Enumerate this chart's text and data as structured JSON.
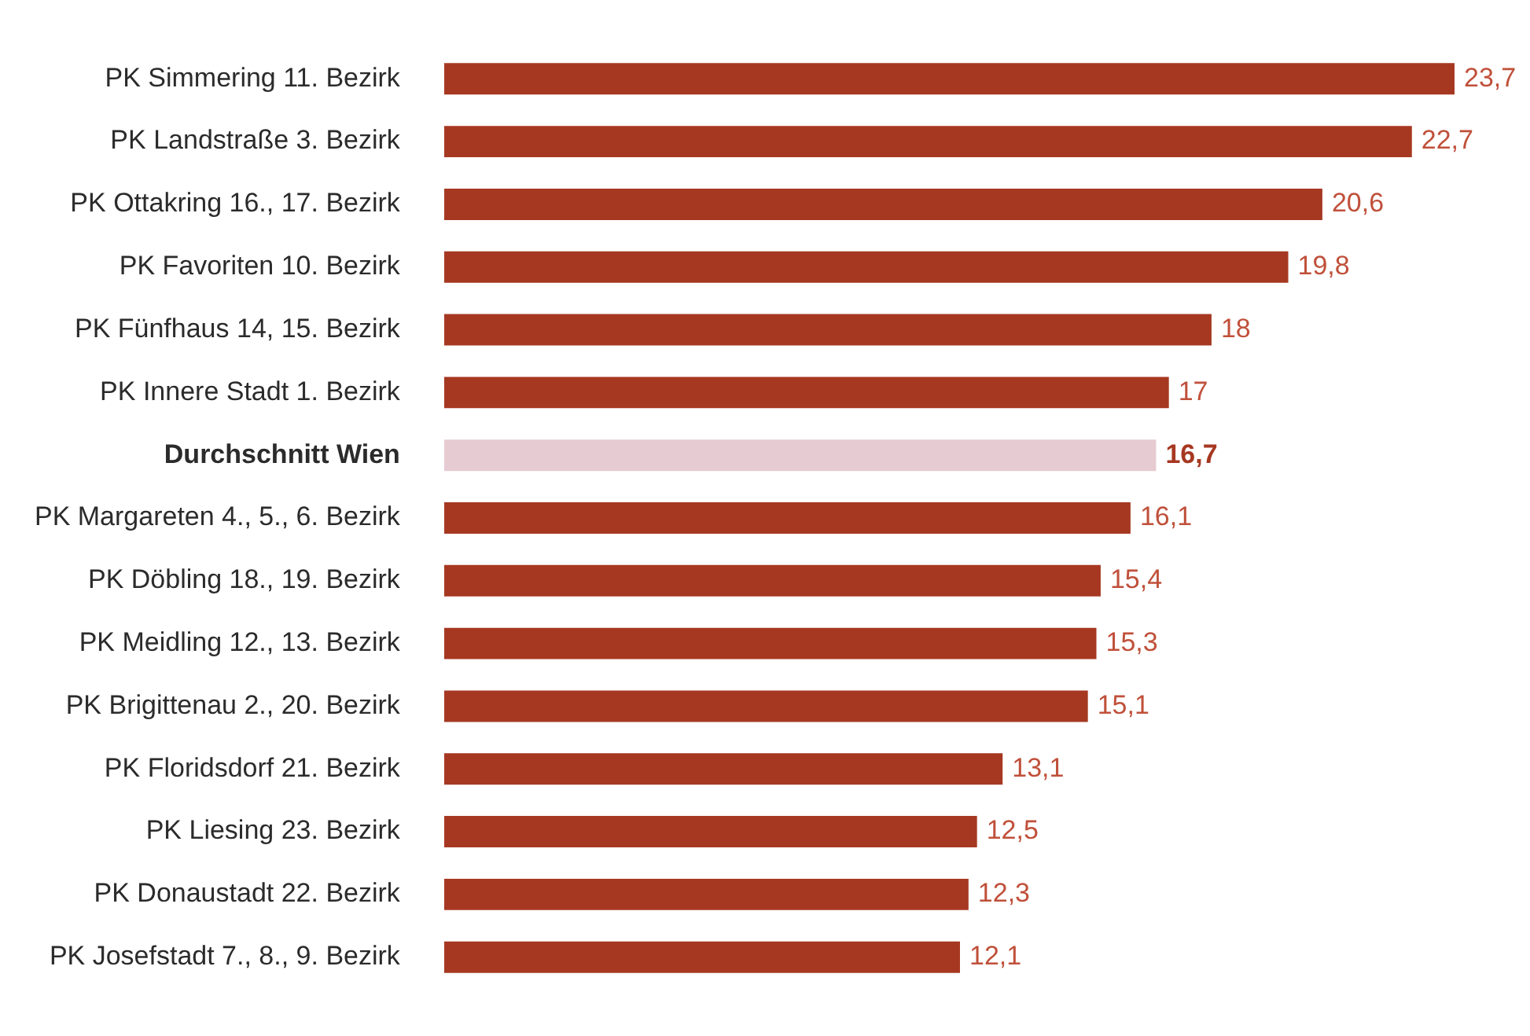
{
  "chart_data": {
    "type": "bar",
    "orientation": "horizontal",
    "categories": [
      "PK Simmering 11. Bezirk",
      "PK Landstraße 3. Bezirk",
      "PK Ottakring 16., 17. Bezirk",
      "PK Favoriten 10. Bezirk",
      "PK Fünfhaus 14, 15. Bezirk",
      "PK Innere Stadt 1. Bezirk",
      "Durchschnitt Wien",
      "PK Margareten 4., 5., 6. Bezirk",
      "PK Döbling 18., 19. Bezirk",
      "PK Meidling 12., 13. Bezirk",
      "PK Brigittenau 2., 20. Bezirk",
      "PK Floridsdorf 21. Bezirk",
      "PK Liesing 23. Bezirk",
      "PK Donaustadt 22. Bezirk",
      "PK Josefstadt 7., 8., 9. Bezirk"
    ],
    "values": [
      23.7,
      22.7,
      20.6,
      19.8,
      18,
      17,
      16.7,
      16.1,
      15.4,
      15.3,
      15.1,
      13.1,
      12.5,
      12.3,
      12.1
    ],
    "value_labels": [
      "23,7",
      "22,7",
      "20,6",
      "19,8",
      "18",
      "17",
      "16,7",
      "16,1",
      "15,4",
      "15,3",
      "15,1",
      "13,1",
      "12,5",
      "12,3",
      "12,1"
    ],
    "colors": [
      "#a63822",
      "#a63822",
      "#a63822",
      "#a63822",
      "#a63822",
      "#a63822",
      "#e6cbd3",
      "#a63822",
      "#a63822",
      "#a63822",
      "#a63822",
      "#a63822",
      "#a63822",
      "#a63822",
      "#a63822"
    ],
    "legend": false
  }
}
